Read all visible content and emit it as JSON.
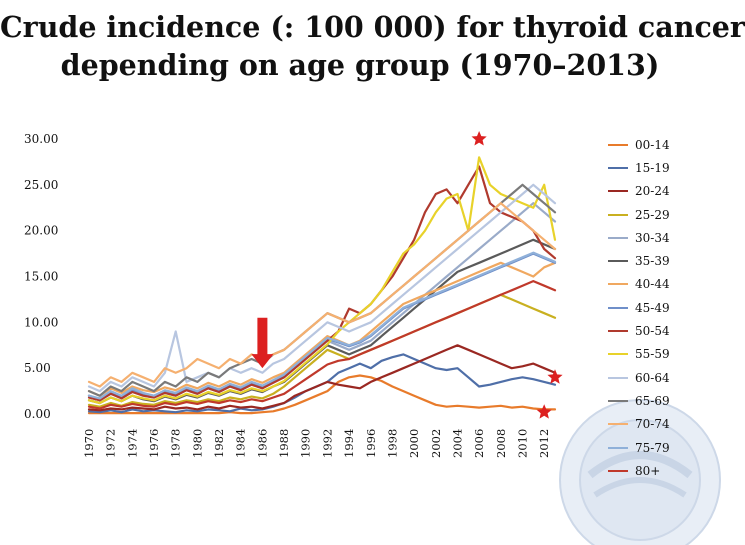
{
  "title_line1": "Crude incidence (: 100 000) for thyroid cancer",
  "title_line2": "depending on age group (1970–2013)",
  "chart_data": {
    "type": "line",
    "title": "Crude incidence (: 100 000) for thyroid cancer depending on age group (1970–2013)",
    "xlabel": "",
    "ylabel": "",
    "ylim": [
      0,
      30
    ],
    "yticks": [
      "0.00",
      "5.00",
      "10.00",
      "15.00",
      "20.00",
      "25.00",
      "30.00"
    ],
    "x": [
      1970,
      1971,
      1972,
      1973,
      1974,
      1975,
      1976,
      1977,
      1978,
      1979,
      1980,
      1981,
      1982,
      1983,
      1984,
      1985,
      1986,
      1987,
      1988,
      1989,
      1990,
      1991,
      1992,
      1993,
      1994,
      1995,
      1996,
      1997,
      1998,
      1999,
      2000,
      2001,
      2002,
      2003,
      2004,
      2005,
      2006,
      2007,
      2008,
      2009,
      2010,
      2011,
      2012,
      2013
    ],
    "xtick_labels": [
      "1970",
      "1972",
      "1974",
      "1976",
      "1978",
      "1980",
      "1982",
      "1984",
      "1986",
      "1988",
      "1990",
      "1992",
      "1994",
      "1996",
      "1998",
      "2000",
      "2002",
      "2004",
      "2006",
      "2008",
      "2010",
      "2012"
    ],
    "legend_position": "right",
    "grid": false,
    "series": [
      {
        "name": "00-14",
        "color": "#e87b2b",
        "values": [
          0.1,
          0.1,
          0.1,
          0.1,
          0.1,
          0.1,
          0.1,
          0.1,
          0.1,
          0.1,
          0.1,
          0.1,
          0.1,
          0.2,
          0.1,
          0.1,
          0.2,
          0.3,
          0.6,
          1.0,
          1.5,
          2.0,
          2.5,
          3.5,
          4.0,
          4.2,
          4.0,
          3.6,
          3.0,
          2.5,
          2.0,
          1.5,
          1.0,
          0.8,
          0.9,
          0.8,
          0.7,
          0.8,
          0.9,
          0.7,
          0.8,
          0.6,
          0.5,
          0.5
        ]
      },
      {
        "name": "15-19",
        "color": "#4f6fa8",
        "values": [
          0.3,
          0.2,
          0.4,
          0.2,
          0.5,
          0.3,
          0.4,
          0.3,
          0.2,
          0.4,
          0.3,
          0.5,
          0.4,
          0.3,
          0.6,
          0.4,
          0.5,
          0.8,
          1.2,
          1.8,
          2.5,
          3.0,
          3.5,
          4.5,
          5.0,
          5.5,
          5.0,
          5.8,
          6.2,
          6.5,
          6.0,
          5.5,
          5.0,
          4.8,
          5.0,
          4.0,
          3.0,
          3.2,
          3.5,
          3.8,
          4.0,
          3.8,
          3.5,
          3.2
        ]
      },
      {
        "name": "20-24",
        "color": "#9a2822",
        "values": [
          0.5,
          0.4,
          0.6,
          0.5,
          0.7,
          0.6,
          0.5,
          0.8,
          0.6,
          0.7,
          0.5,
          0.8,
          0.6,
          0.9,
          0.7,
          0.8,
          0.6,
          0.9,
          1.2,
          2.0,
          2.5,
          3.0,
          3.5,
          3.2,
          3.0,
          2.8,
          3.5,
          4.0,
          4.5,
          5.0,
          5.5,
          6.0,
          6.5,
          7.0,
          7.5,
          7.0,
          6.5,
          6.0,
          5.5,
          5.0,
          5.2,
          5.5,
          5.0,
          4.5
        ]
      },
      {
        "name": "25-29",
        "color": "#c9b020",
        "values": [
          1.0,
          0.8,
          1.2,
          0.9,
          1.3,
          1.1,
          1.0,
          1.4,
          1.2,
          1.5,
          1.3,
          1.6,
          1.4,
          1.8,
          1.6,
          1.9,
          1.7,
          2.2,
          3.0,
          4.0,
          5.0,
          6.0,
          7.0,
          6.5,
          6.0,
          6.5,
          7.0,
          7.5,
          8.0,
          8.5,
          9.0,
          9.5,
          10.0,
          10.5,
          11.0,
          11.5,
          12.0,
          12.5,
          13.0,
          12.5,
          12.0,
          11.5,
          11.0,
          10.5
        ]
      },
      {
        "name": "30-34",
        "color": "#9aabc9",
        "values": [
          2.0,
          1.5,
          2.2,
          1.8,
          2.5,
          2.0,
          1.8,
          2.3,
          2.0,
          2.6,
          2.2,
          2.8,
          2.4,
          3.0,
          2.6,
          3.2,
          2.8,
          3.5,
          4.0,
          5.0,
          6.0,
          7.0,
          8.0,
          7.5,
          7.0,
          7.5,
          8.0,
          9.0,
          10.0,
          11.0,
          12.0,
          13.0,
          14.0,
          15.0,
          16.0,
          17.0,
          18.0,
          19.0,
          20.0,
          21.0,
          22.0,
          23.0,
          22.0,
          21.0
        ]
      },
      {
        "name": "35-39",
        "color": "#5a5a5a",
        "values": [
          1.5,
          1.2,
          1.8,
          1.4,
          2.0,
          1.6,
          1.4,
          1.9,
          1.6,
          2.1,
          1.8,
          2.3,
          2.0,
          2.5,
          2.2,
          2.7,
          2.4,
          3.0,
          3.5,
          4.5,
          5.5,
          6.5,
          7.5,
          7.0,
          6.5,
          7.0,
          7.5,
          8.5,
          9.5,
          10.5,
          11.5,
          12.5,
          13.5,
          14.5,
          15.5,
          16.0,
          16.5,
          17.0,
          17.5,
          18.0,
          18.5,
          19.0,
          18.5,
          18.0
        ]
      },
      {
        "name": "40-44",
        "color": "#f0a860",
        "values": [
          2.5,
          2.0,
          2.8,
          2.3,
          3.0,
          2.6,
          2.4,
          2.9,
          2.6,
          3.2,
          2.8,
          3.4,
          3.0,
          3.6,
          3.2,
          3.8,
          3.4,
          4.0,
          4.5,
          5.5,
          6.5,
          7.5,
          8.5,
          8.0,
          7.5,
          8.0,
          9.0,
          10.0,
          11.0,
          12.0,
          12.5,
          13.0,
          13.5,
          14.0,
          14.5,
          15.0,
          15.5,
          16.0,
          16.5,
          16.0,
          15.5,
          15.0,
          16.0,
          16.5
        ]
      },
      {
        "name": "45-49",
        "color": "#6f8fc9",
        "values": [
          2.0,
          1.6,
          2.4,
          1.9,
          2.6,
          2.2,
          2.0,
          2.5,
          2.2,
          2.8,
          2.4,
          3.0,
          2.6,
          3.2,
          2.8,
          3.4,
          3.0,
          3.6,
          4.2,
          5.2,
          6.2,
          7.2,
          8.2,
          7.8,
          7.4,
          7.8,
          8.5,
          9.5,
          10.5,
          11.5,
          12.0,
          12.5,
          13.0,
          13.5,
          14.0,
          14.5,
          15.0,
          15.5,
          16.0,
          16.5,
          17.0,
          17.5,
          17.0,
          16.5
        ]
      },
      {
        "name": "50-54",
        "color": "#b03a2e",
        "values": [
          1.8,
          1.5,
          2.2,
          1.7,
          2.4,
          2.0,
          1.8,
          2.3,
          2.0,
          2.6,
          2.2,
          2.8,
          2.4,
          3.0,
          2.6,
          3.2,
          2.8,
          3.4,
          4.0,
          5.0,
          6.0,
          7.0,
          8.0,
          9.0,
          11.5,
          11.0,
          12.0,
          13.5,
          15.0,
          17.0,
          19.0,
          22.0,
          24.0,
          24.5,
          23.0,
          25.0,
          27.0,
          23.0,
          22.0,
          21.5,
          21.0,
          20.0,
          18.0,
          17.0
        ]
      },
      {
        "name": "55-59",
        "color": "#e8d22a",
        "values": [
          1.5,
          1.2,
          1.8,
          1.4,
          2.0,
          1.7,
          1.5,
          2.0,
          1.7,
          2.2,
          1.9,
          2.4,
          2.1,
          2.6,
          2.3,
          2.8,
          2.5,
          3.0,
          3.6,
          4.6,
          5.6,
          6.6,
          7.6,
          9.0,
          10.0,
          11.0,
          12.0,
          13.5,
          15.5,
          17.5,
          18.5,
          20.0,
          22.0,
          23.5,
          24.0,
          20.0,
          28.0,
          25.0,
          24.0,
          23.5,
          23.0,
          22.5,
          25.0,
          19.0
        ]
      },
      {
        "name": "60-64",
        "color": "#b8c6e0",
        "values": [
          3.0,
          2.5,
          3.5,
          3.0,
          4.0,
          3.5,
          3.0,
          4.5,
          9.0,
          3.5,
          4.0,
          4.5,
          4.0,
          5.0,
          4.5,
          5.0,
          4.5,
          5.5,
          6.0,
          7.0,
          8.0,
          9.0,
          10.0,
          9.5,
          9.0,
          9.5,
          10.0,
          11.0,
          12.0,
          13.0,
          14.0,
          15.0,
          16.0,
          17.0,
          18.0,
          19.0,
          20.0,
          21.0,
          22.0,
          23.0,
          24.0,
          25.0,
          24.0,
          23.0
        ]
      },
      {
        "name": "65-69",
        "color": "#7a7a7a",
        "values": [
          2.5,
          2.0,
          3.0,
          2.5,
          3.5,
          3.0,
          2.5,
          3.5,
          3.0,
          4.0,
          3.5,
          4.5,
          4.0,
          5.0,
          5.5,
          6.0,
          5.5,
          6.5,
          7.0,
          8.0,
          9.0,
          10.0,
          11.0,
          10.5,
          10.0,
          10.5,
          11.0,
          12.0,
          13.0,
          14.0,
          15.0,
          16.0,
          17.0,
          18.0,
          19.0,
          20.0,
          21.0,
          22.0,
          23.0,
          24.0,
          25.0,
          24.0,
          23.0,
          22.0
        ]
      },
      {
        "name": "70-74",
        "color": "#f5b070",
        "values": [
          3.5,
          3.0,
          4.0,
          3.5,
          4.5,
          4.0,
          3.5,
          5.0,
          4.5,
          5.0,
          6.0,
          5.5,
          5.0,
          6.0,
          5.5,
          6.5,
          6.0,
          6.5,
          7.0,
          8.0,
          9.0,
          10.0,
          11.0,
          10.5,
          10.0,
          10.5,
          11.0,
          12.0,
          13.0,
          14.0,
          15.0,
          16.0,
          17.0,
          18.0,
          19.0,
          20.0,
          21.0,
          22.0,
          23.0,
          22.0,
          21.0,
          20.0,
          19.0,
          18.0
        ]
      },
      {
        "name": "75-79",
        "color": "#8fb0d9",
        "values": [
          2.0,
          1.7,
          2.5,
          2.0,
          2.8,
          2.3,
          2.0,
          2.6,
          2.3,
          2.9,
          2.5,
          3.1,
          2.7,
          3.3,
          2.9,
          3.5,
          3.1,
          3.7,
          4.3,
          5.3,
          6.3,
          7.3,
          8.3,
          7.9,
          7.5,
          7.9,
          8.6,
          9.6,
          10.6,
          11.6,
          12.1,
          12.6,
          13.1,
          13.6,
          14.1,
          14.6,
          15.1,
          15.6,
          16.1,
          16.6,
          17.1,
          17.6,
          17.1,
          16.6
        ]
      },
      {
        "name": "80+",
        "color": "#c0392b",
        "values": [
          0.8,
          0.6,
          1.0,
          0.8,
          1.1,
          0.9,
          0.8,
          1.2,
          1.0,
          1.3,
          1.1,
          1.4,
          1.2,
          1.5,
          1.3,
          1.6,
          1.4,
          1.8,
          2.2,
          3.0,
          3.8,
          4.6,
          5.4,
          5.8,
          6.0,
          6.5,
          7.0,
          7.5,
          8.0,
          8.5,
          9.0,
          9.5,
          10.0,
          10.5,
          11.0,
          11.5,
          12.0,
          12.5,
          13.0,
          13.5,
          14.0,
          14.5,
          14.0,
          13.5
        ]
      }
    ],
    "markers": [
      {
        "x": 2006,
        "y": 30,
        "color": "#dc2020"
      },
      {
        "x": 2013,
        "y": 4.0,
        "color": "#dc2020"
      },
      {
        "x": 2012,
        "y": 0.2,
        "color": "#dc2020"
      }
    ],
    "arrow": {
      "x": 1986,
      "y_from": 10.5,
      "y_to": 5.0,
      "color": "#dc2020"
    }
  }
}
